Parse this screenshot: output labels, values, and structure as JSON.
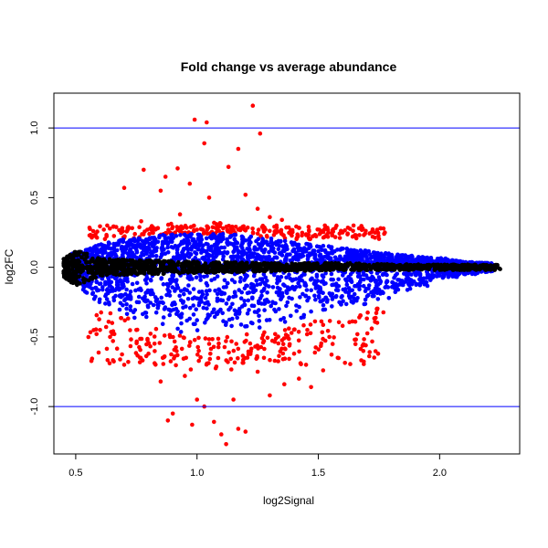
{
  "chart_data": {
    "type": "scatter",
    "title": "Fold change vs average abundance",
    "xlabel": "log2Signal",
    "ylabel": "log2FC",
    "xlim": [
      0.41,
      2.33
    ],
    "ylim": [
      -1.34,
      1.25
    ],
    "x_ticks": [
      "0.5",
      "1.0",
      "1.5",
      "2.0"
    ],
    "x_tick_values": [
      0.5,
      1.0,
      1.5,
      2.0
    ],
    "y_ticks": [
      "-1.0",
      "-0.5",
      "0.0",
      "0.5",
      "1.0"
    ],
    "y_tick_values": [
      -1.0,
      -0.5,
      0.0,
      0.5,
      1.0
    ],
    "reference_lines": [
      1.0,
      -1.0
    ],
    "reference_line_color": "#0000ff",
    "colors": {
      "red": "#ff0000",
      "blue": "#0000ff",
      "black": "#000000"
    },
    "grid": false,
    "legend": "none",
    "series": [
      {
        "color": "red",
        "points": [
          [
            0.99,
            1.06
          ],
          [
            1.04,
            1.04
          ],
          [
            1.23,
            1.16
          ],
          [
            1.26,
            0.96
          ],
          [
            1.03,
            0.89
          ],
          [
            1.17,
            0.85
          ],
          [
            0.92,
            0.71
          ],
          [
            0.78,
            0.7
          ],
          [
            1.13,
            0.72
          ],
          [
            0.87,
            0.65
          ],
          [
            0.97,
            0.6
          ],
          [
            1.2,
            0.52
          ],
          [
            0.7,
            0.57
          ],
          [
            0.85,
            0.55
          ],
          [
            1.05,
            0.5
          ],
          [
            1.25,
            0.42
          ],
          [
            1.35,
            0.34
          ],
          [
            1.46,
            0.29
          ],
          [
            0.63,
            0.3
          ],
          [
            0.77,
            0.33
          ],
          [
            0.93,
            0.38
          ],
          [
            1.08,
            0.31
          ],
          [
            1.3,
            0.36
          ],
          [
            0.6,
            -0.45
          ],
          [
            0.65,
            -0.4
          ],
          [
            0.75,
            -0.45
          ],
          [
            0.7,
            -0.7
          ],
          [
            0.8,
            -0.62
          ],
          [
            0.85,
            -0.82
          ],
          [
            0.95,
            -0.78
          ],
          [
            1.0,
            -0.95
          ],
          [
            0.9,
            -1.05
          ],
          [
            0.88,
            -1.1
          ],
          [
            0.98,
            -1.13
          ],
          [
            1.03,
            -1.0
          ],
          [
            1.07,
            -1.11
          ],
          [
            1.1,
            -1.2
          ],
          [
            1.17,
            -1.16
          ],
          [
            1.12,
            -1.27
          ],
          [
            1.2,
            -1.18
          ],
          [
            1.15,
            -0.95
          ],
          [
            1.3,
            -0.92
          ],
          [
            1.25,
            -0.75
          ],
          [
            1.36,
            -0.84
          ],
          [
            1.42,
            -0.8
          ],
          [
            1.47,
            -0.86
          ],
          [
            1.52,
            -0.74
          ],
          [
            1.58,
            -0.65
          ],
          [
            1.65,
            -0.52
          ],
          [
            1.72,
            -0.44
          ],
          [
            1.6,
            -0.42
          ],
          [
            1.4,
            -0.62
          ],
          [
            1.05,
            -0.55
          ]
        ],
        "band_y_ranges": [
          [
            0.2,
            0.3
          ],
          [
            -0.7,
            -0.28
          ]
        ],
        "band_x_range": [
          0.55,
          1.78
        ]
      },
      {
        "color": "blue",
        "envelope": [
          [
            0.5,
            -0.12,
            0.1
          ],
          [
            0.6,
            -0.28,
            0.17
          ],
          [
            0.7,
            -0.35,
            0.2
          ],
          [
            0.8,
            -0.42,
            0.22
          ],
          [
            0.9,
            -0.48,
            0.24
          ],
          [
            1.0,
            -0.5,
            0.24
          ],
          [
            1.1,
            -0.5,
            0.24
          ],
          [
            1.2,
            -0.48,
            0.23
          ],
          [
            1.3,
            -0.46,
            0.21
          ],
          [
            1.4,
            -0.42,
            0.18
          ],
          [
            1.5,
            -0.38,
            0.16
          ],
          [
            1.6,
            -0.34,
            0.14
          ],
          [
            1.7,
            -0.3,
            0.12
          ],
          [
            1.8,
            -0.25,
            0.1
          ],
          [
            1.9,
            -0.18,
            0.08
          ],
          [
            2.0,
            -0.12,
            0.07
          ],
          [
            2.1,
            -0.06,
            0.04
          ],
          [
            2.2,
            -0.04,
            0.03
          ]
        ]
      },
      {
        "color": "black",
        "envelope": [
          [
            0.45,
            -0.07,
            0.06
          ],
          [
            0.5,
            -0.13,
            0.12
          ],
          [
            0.55,
            -0.1,
            0.1
          ],
          [
            0.6,
            -0.06,
            0.06
          ],
          [
            0.8,
            -0.05,
            0.05
          ],
          [
            1.0,
            -0.04,
            0.04
          ],
          [
            1.3,
            -0.03,
            0.03
          ],
          [
            1.6,
            -0.02,
            0.03
          ],
          [
            1.9,
            -0.02,
            0.02
          ],
          [
            2.25,
            -0.02,
            0.02
          ]
        ]
      }
    ]
  }
}
